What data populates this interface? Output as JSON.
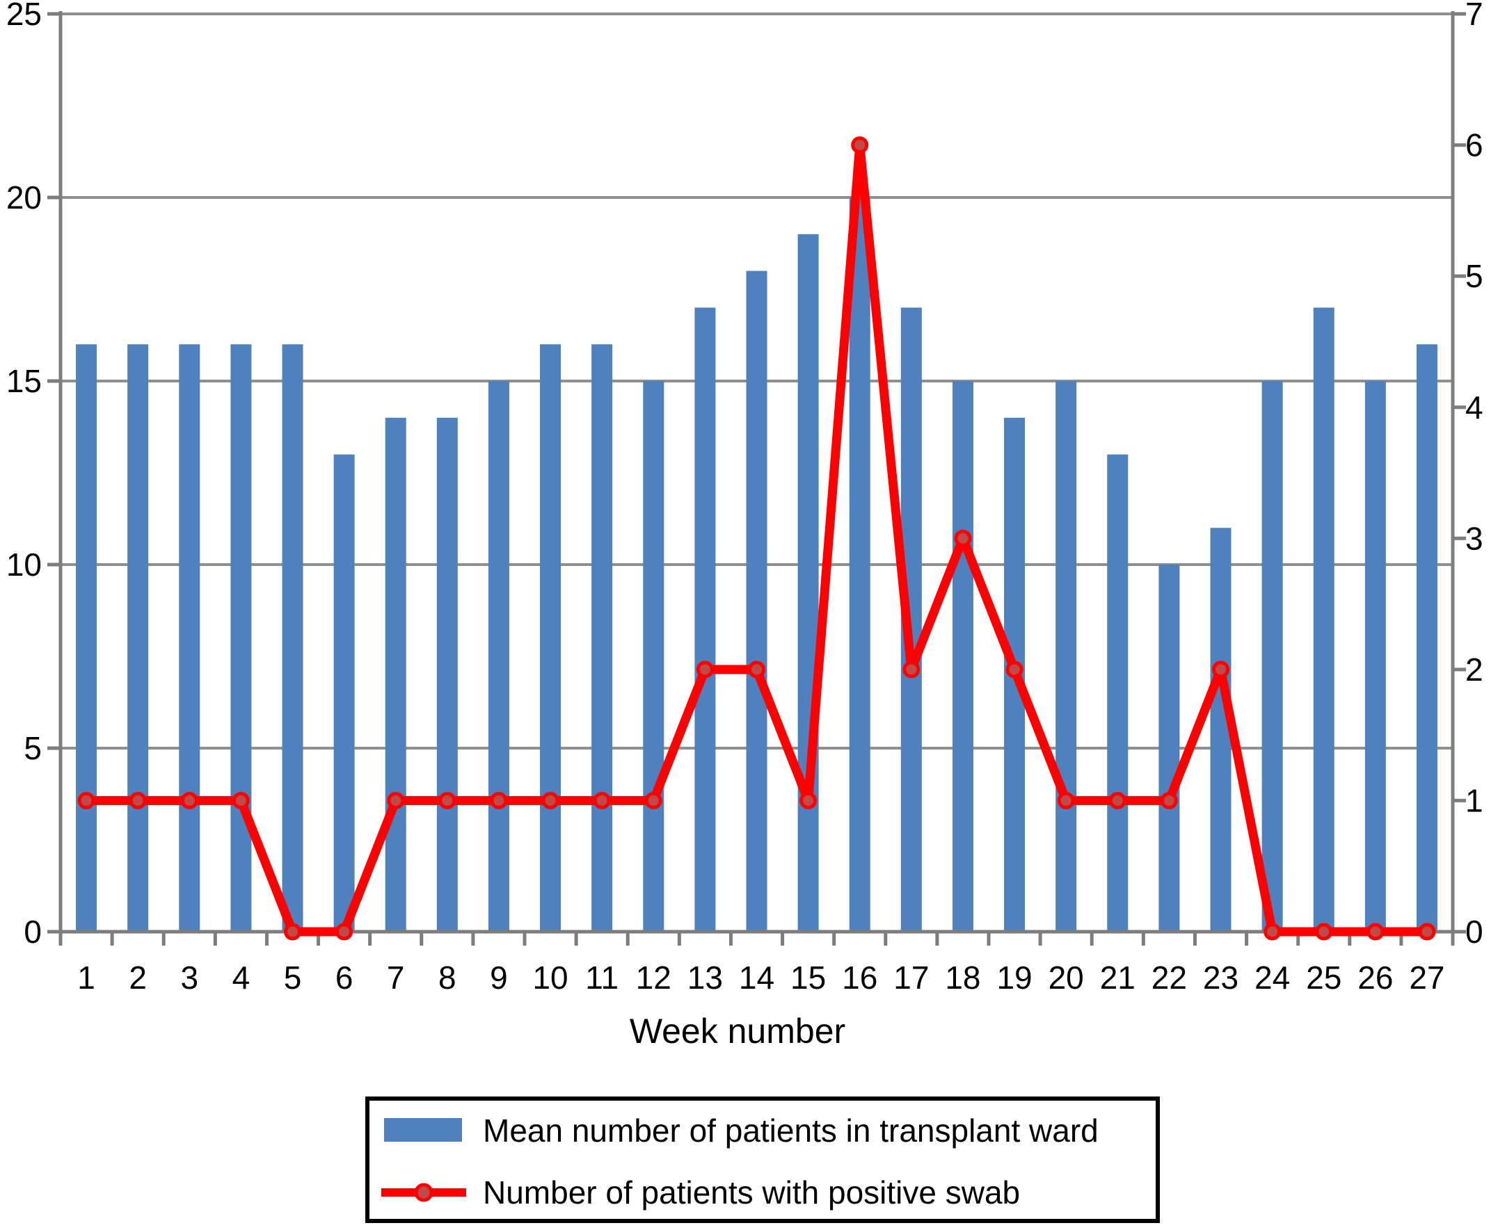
{
  "figure": {
    "x_axis_title": "Week number"
  },
  "colors": {
    "bar": "#4e81bd",
    "line": "#ff0000",
    "marker_fill": "#bf4a47",
    "grid": "#8f8f8f",
    "axis": "#7d7d7d",
    "text": "#000000",
    "legend_border": "#000000",
    "background": "#ffffff"
  },
  "chart_data": {
    "type": "bar+line",
    "categories": [
      1,
      2,
      3,
      4,
      5,
      6,
      7,
      8,
      9,
      10,
      11,
      12,
      13,
      14,
      15,
      16,
      17,
      18,
      19,
      20,
      21,
      22,
      23,
      24,
      25,
      26,
      27
    ],
    "xlabel": "Week number",
    "series": [
      {
        "name": "Mean number of patients in transplant ward",
        "type": "bar",
        "axis": "left",
        "color": "#4e81bd",
        "values": [
          16,
          16,
          16,
          16,
          16,
          13,
          14,
          14,
          15,
          16,
          16,
          15,
          17,
          18,
          19,
          20,
          17,
          15,
          14,
          15,
          13,
          10,
          11,
          15,
          17,
          15,
          16
        ]
      },
      {
        "name": "Number of patients with positive swab",
        "type": "line",
        "axis": "right",
        "color": "#ff0000",
        "values": [
          1,
          1,
          1,
          1,
          0,
          0,
          1,
          1,
          1,
          1,
          1,
          1,
          2,
          2,
          1,
          6,
          2,
          3,
          2,
          1,
          1,
          1,
          2,
          0,
          0,
          0,
          0
        ]
      }
    ],
    "left_axis": {
      "range": [
        0,
        25
      ],
      "ticks": [
        0,
        5,
        10,
        15,
        20,
        25
      ]
    },
    "right_axis": {
      "range": [
        0,
        7
      ],
      "ticks": [
        0,
        1,
        2,
        3,
        4,
        5,
        6,
        7
      ]
    },
    "grid": true,
    "legend_position": "bottom"
  }
}
